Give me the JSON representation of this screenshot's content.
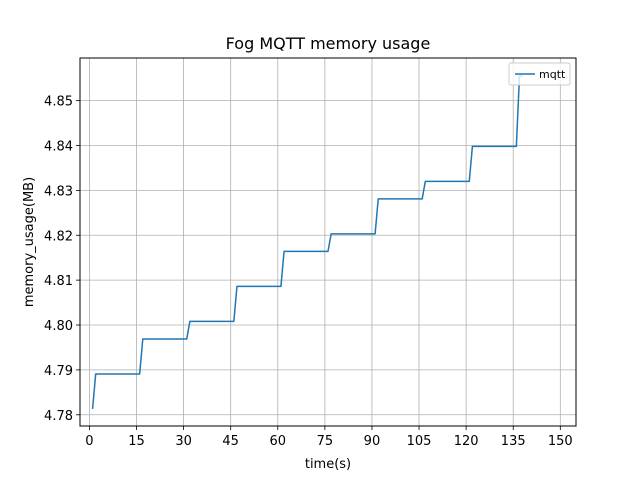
{
  "chart_data": {
    "type": "line",
    "title": "Fog MQTT memory usage",
    "xlabel": "time(s)",
    "ylabel": "memory_usage(MB)",
    "xlim": [
      -3,
      155
    ],
    "ylim": [
      4.7775,
      4.8595
    ],
    "xticks": [
      0,
      15,
      30,
      45,
      60,
      75,
      90,
      105,
      120,
      135,
      150
    ],
    "yticks": [
      4.78,
      4.79,
      4.8,
      4.81,
      4.82,
      4.83,
      4.84,
      4.85
    ],
    "ytick_labels": [
      "4.78",
      "4.79",
      "4.80",
      "4.81",
      "4.82",
      "4.83",
      "4.84",
      "4.85"
    ],
    "grid": true,
    "legend": {
      "position": "top-right",
      "entries": [
        "mqtt"
      ]
    },
    "series": [
      {
        "name": "mqtt",
        "color": "#1f77b4",
        "x": [
          1,
          2,
          16,
          17,
          31,
          32,
          46,
          47,
          61,
          62,
          76,
          77,
          91,
          92,
          106,
          107,
          121,
          122,
          136,
          137,
          138
        ],
        "y": [
          4.7813,
          4.7891,
          4.7891,
          4.7969,
          4.7969,
          4.8008,
          4.8008,
          4.8086,
          4.8086,
          4.8164,
          4.8164,
          4.8203,
          4.8203,
          4.8281,
          4.8281,
          4.832,
          4.832,
          4.8398,
          4.8398,
          4.8555,
          4.8555
        ]
      }
    ]
  }
}
